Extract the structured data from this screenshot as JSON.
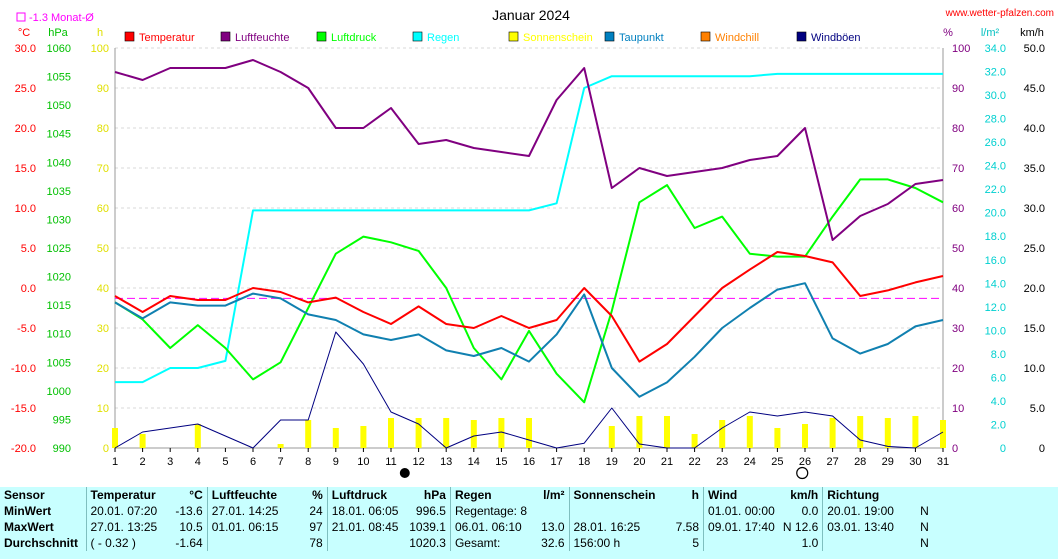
{
  "title": "Januar 2024",
  "site": "www.wetter-pfalzen.com",
  "monthly_mean_note": "-1.3 Monat-Ø",
  "axis_units": {
    "temp": "°C",
    "pressure": "hPa",
    "sun": "h",
    "humidity": "%",
    "rain": "l/m²",
    "wind": "km/h"
  },
  "legend": [
    {
      "label": "Temperatur",
      "color": "#ff0000"
    },
    {
      "label": "Luftfeuchte",
      "color": "#800080"
    },
    {
      "label": "Luftdruck",
      "color": "#00ff00"
    },
    {
      "label": "Regen",
      "color": "#00ffff"
    },
    {
      "label": "Sonnenschein",
      "color": "#ffff00"
    },
    {
      "label": "Taupunkt",
      "color": "#0080c0"
    },
    {
      "label": "Windchill",
      "color": "#ff8000"
    },
    {
      "label": "Windböen",
      "color": "#000080"
    }
  ],
  "colors": {
    "temp": "#ff0000",
    "humidity": "#800080",
    "pressure": "#00ff00",
    "rain": "#00ffff",
    "sun": "#ffff00",
    "dew": "#1080b0",
    "gust": "#000080",
    "mean": "#ff00ff",
    "temp_axis": "#ff0000",
    "pressure_axis": "#00c000",
    "sun_axis": "#e0e000",
    "humidity_axis": "#800080",
    "rain_axis": "#00d0d0",
    "wind_axis": "#000000"
  },
  "chart_data": {
    "type": "line",
    "x": [
      1,
      2,
      3,
      4,
      5,
      6,
      7,
      8,
      9,
      10,
      11,
      12,
      13,
      14,
      15,
      16,
      17,
      18,
      19,
      20,
      21,
      22,
      23,
      24,
      25,
      26,
      27,
      28,
      29,
      30,
      31
    ],
    "x_ticks": [
      "1",
      "2",
      "3",
      "4",
      "5",
      "6",
      "7",
      "8",
      "9",
      "10",
      "11",
      "12",
      "13",
      "14",
      "15",
      "16",
      "17",
      "18",
      "19",
      "20",
      "21",
      "22",
      "23",
      "24",
      "25",
      "26",
      "27",
      "28",
      "29",
      "30",
      "31"
    ],
    "moon_phases": [
      {
        "day": 11.5,
        "phase": "new"
      },
      {
        "day": 25.9,
        "phase": "full"
      }
    ],
    "axes": {
      "temp": {
        "range": [
          -20,
          30
        ],
        "ticks": [
          "30.0",
          "25.0",
          "20.0",
          "15.0",
          "10.0",
          "5.0",
          "0.0",
          "-5.0",
          "-10.0",
          "-15.0",
          "-20.0"
        ]
      },
      "pressure": {
        "range": [
          990,
          1060
        ],
        "ticks": [
          "1060",
          "1055",
          "1050",
          "1045",
          "1040",
          "1035",
          "1030",
          "1025",
          "1020",
          "1015",
          "1010",
          "1005",
          "1000",
          "995",
          "990"
        ]
      },
      "sun": {
        "range": [
          0,
          100
        ],
        "ticks": [
          "100",
          "90",
          "80",
          "70",
          "60",
          "50",
          "40",
          "30",
          "20",
          "10",
          "0"
        ]
      },
      "humidity": {
        "range": [
          0,
          100
        ],
        "ticks": [
          "100",
          "90",
          "80",
          "70",
          "60",
          "50",
          "40",
          "30",
          "20",
          "10",
          "0"
        ]
      },
      "rain": {
        "range": [
          0,
          34
        ],
        "ticks": [
          "34.0",
          "32.0",
          "30.0",
          "28.0",
          "26.0",
          "24.0",
          "22.0",
          "20.0",
          "18.0",
          "16.0",
          "14.0",
          "12.0",
          "10.0",
          "8.0",
          "6.0",
          "4.0",
          "2.0",
          "0"
        ]
      },
      "wind": {
        "range": [
          0,
          50
        ],
        "ticks": [
          "50.0",
          "45.0",
          "40.0",
          "35.0",
          "30.0",
          "25.0",
          "20.0",
          "15.0",
          "10.0",
          "5.0",
          "0"
        ]
      }
    },
    "series": [
      {
        "name": "Temperatur",
        "axis": "temp",
        "values": [
          -1.0,
          -3.0,
          -1.0,
          -1.5,
          -1.5,
          0.0,
          -0.5,
          -1.8,
          -1.2,
          -3.0,
          -4.5,
          -2.3,
          -4.5,
          -5.0,
          -3.5,
          -5.0,
          -4.0,
          0.0,
          -3.5,
          -9.2,
          -7.0,
          -3.5,
          0.0,
          2.3,
          4.5,
          4.0,
          3.2,
          -1.0,
          -0.3,
          0.7,
          1.5
        ]
      },
      {
        "name": "Luftfeuchte",
        "axis": "humidity",
        "values": [
          94,
          92,
          95,
          95,
          95,
          97,
          94,
          90,
          80,
          80,
          85,
          76,
          77,
          75,
          74,
          73,
          87,
          95,
          65,
          70,
          68,
          69,
          70,
          72,
          73,
          80,
          52,
          58,
          61,
          66,
          67
        ]
      },
      {
        "name": "Luftdruck",
        "axis": "pressure",
        "values": [
          1015.5,
          1012.5,
          1007.5,
          1011.5,
          1007.5,
          1002.0,
          1005.0,
          1014.5,
          1024.0,
          1027.0,
          1026.0,
          1024.5,
          1018.0,
          1007.5,
          1002.0,
          1010.5,
          1003.0,
          998.0,
          1014.0,
          1033.0,
          1036.0,
          1028.5,
          1030.5,
          1024.0,
          1023.5,
          1023.5,
          1030.5,
          1037.0,
          1037.0,
          1035.5,
          1033.0
        ]
      },
      {
        "name": "Regen",
        "axis": "rain",
        "values": [
          5.6,
          5.6,
          6.8,
          6.8,
          7.4,
          20.2,
          20.2,
          20.2,
          20.2,
          20.2,
          20.2,
          20.2,
          20.2,
          20.2,
          20.2,
          20.2,
          20.8,
          30.6,
          31.6,
          31.6,
          31.6,
          31.6,
          31.6,
          31.6,
          31.8,
          31.8,
          31.8,
          31.8,
          31.8,
          31.8,
          31.8
        ]
      },
      {
        "name": "Sonnenschein",
        "axis": "sun",
        "values": [
          5.0,
          3.5,
          0,
          6.0,
          0,
          0,
          1.0,
          7.0,
          5.0,
          5.5,
          7.5,
          7.5,
          7.5,
          7.0,
          7.5,
          7.5,
          0,
          0,
          5.5,
          8.0,
          8.0,
          3.5,
          7.0,
          8.0,
          5.0,
          6.0,
          7.5,
          8.0,
          7.5,
          8.0,
          7.0
        ]
      },
      {
        "name": "Taupunkt",
        "axis": "temp",
        "values": [
          -1.8,
          -3.8,
          -1.8,
          -2.2,
          -2.2,
          -0.7,
          -1.3,
          -3.3,
          -4.0,
          -5.8,
          -6.5,
          -5.8,
          -7.8,
          -8.5,
          -7.5,
          -9.2,
          -5.8,
          -0.8,
          -10.0,
          -13.6,
          -11.8,
          -8.6,
          -5.0,
          -2.5,
          -0.2,
          0.6,
          -6.3,
          -8.2,
          -7.0,
          -4.8,
          -4.0
        ]
      },
      {
        "name": "Windböen",
        "axis": "wind",
        "values": [
          0,
          2.0,
          2.5,
          3.0,
          1.5,
          0,
          3.5,
          3.5,
          14.5,
          10.5,
          4.5,
          3.0,
          0,
          1.5,
          2.0,
          1.0,
          0,
          0.6,
          5.0,
          0.5,
          0,
          0,
          2.5,
          4.5,
          4.0,
          4.5,
          4.0,
          1.0,
          0.2,
          0,
          2.0
        ]
      }
    ],
    "reference_lines": [
      {
        "axis": "temp",
        "value": -1.3,
        "label": "-1.3 Monat-Ø"
      }
    ]
  },
  "stats": {
    "headers": {
      "sensor": "Sensor",
      "temp": "Temperatur",
      "temp_unit": "°C",
      "hum": "Luftfeuchte",
      "hum_unit": "%",
      "press": "Luftdruck",
      "press_unit": "hPa",
      "rain": "Regen",
      "rain_unit": "l/m²",
      "sun": "Sonnenschein",
      "sun_unit": "h",
      "wind": "Wind",
      "wind_unit": "km/h",
      "dir": "Richtung"
    },
    "min": {
      "label": "MinWert",
      "temp_time": "20.01.  07:20",
      "temp_val": "-13.6",
      "hum_time": "27.01.  14:25",
      "hum_val": "24",
      "press_time": "18.01.  06:05",
      "press_val": "996.5",
      "rain_info": "Regentage: 8",
      "rain_val": "",
      "sun_time": "",
      "sun_val": "",
      "wind_time": "01.01.  00:00",
      "wind_val": "0.0",
      "dir_time": "20.01.  19:00",
      "dir_val": "N"
    },
    "max": {
      "label": "MaxWert",
      "temp_time": "27.01.  13:25",
      "temp_val": "10.5",
      "hum_time": "01.01.  06:15",
      "hum_val": "97",
      "press_time": "21.01.  08:45",
      "press_val": "1039.1",
      "rain_info": "06.01.  06:10",
      "rain_val": "13.0",
      "sun_time": "28.01.  16:25",
      "sun_val": "7.58",
      "wind_time": "09.01.  17:40",
      "wind_val": "N 12.6",
      "dir_time": "03.01.  13:40",
      "dir_val": "N"
    },
    "avg": {
      "label": "Durchschnitt",
      "temp_time": "( - 0.32 )",
      "temp_val": "-1.64",
      "hum_time": "",
      "hum_val": "78",
      "press_time": "",
      "press_val": "1020.3",
      "rain_info": "Gesamt:",
      "rain_val": "32.6",
      "sun_time": "156:00 h",
      "sun_val": "5",
      "wind_time": "",
      "wind_val": "1.0",
      "dir_time": "",
      "dir_val": "N"
    }
  }
}
